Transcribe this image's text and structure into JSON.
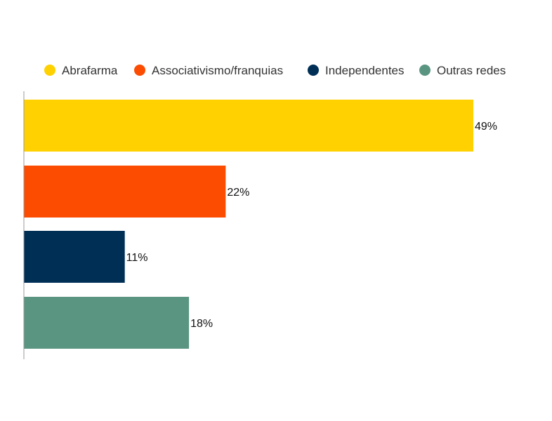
{
  "chart_data": {
    "type": "bar",
    "orientation": "horizontal",
    "categories": [
      "Abrafarma",
      "Associativismo/franquias",
      "Independentes",
      "Outras redes"
    ],
    "values": [
      49,
      22,
      11,
      18
    ],
    "value_labels": [
      "49%",
      "22%",
      "11%",
      "18%"
    ],
    "unit": "%",
    "xlim": [
      0,
      55
    ],
    "legend_position": "top",
    "grid": false,
    "colors": [
      "#ffd100",
      "#fc4c02",
      "#002f56",
      "#5a9582"
    ]
  }
}
